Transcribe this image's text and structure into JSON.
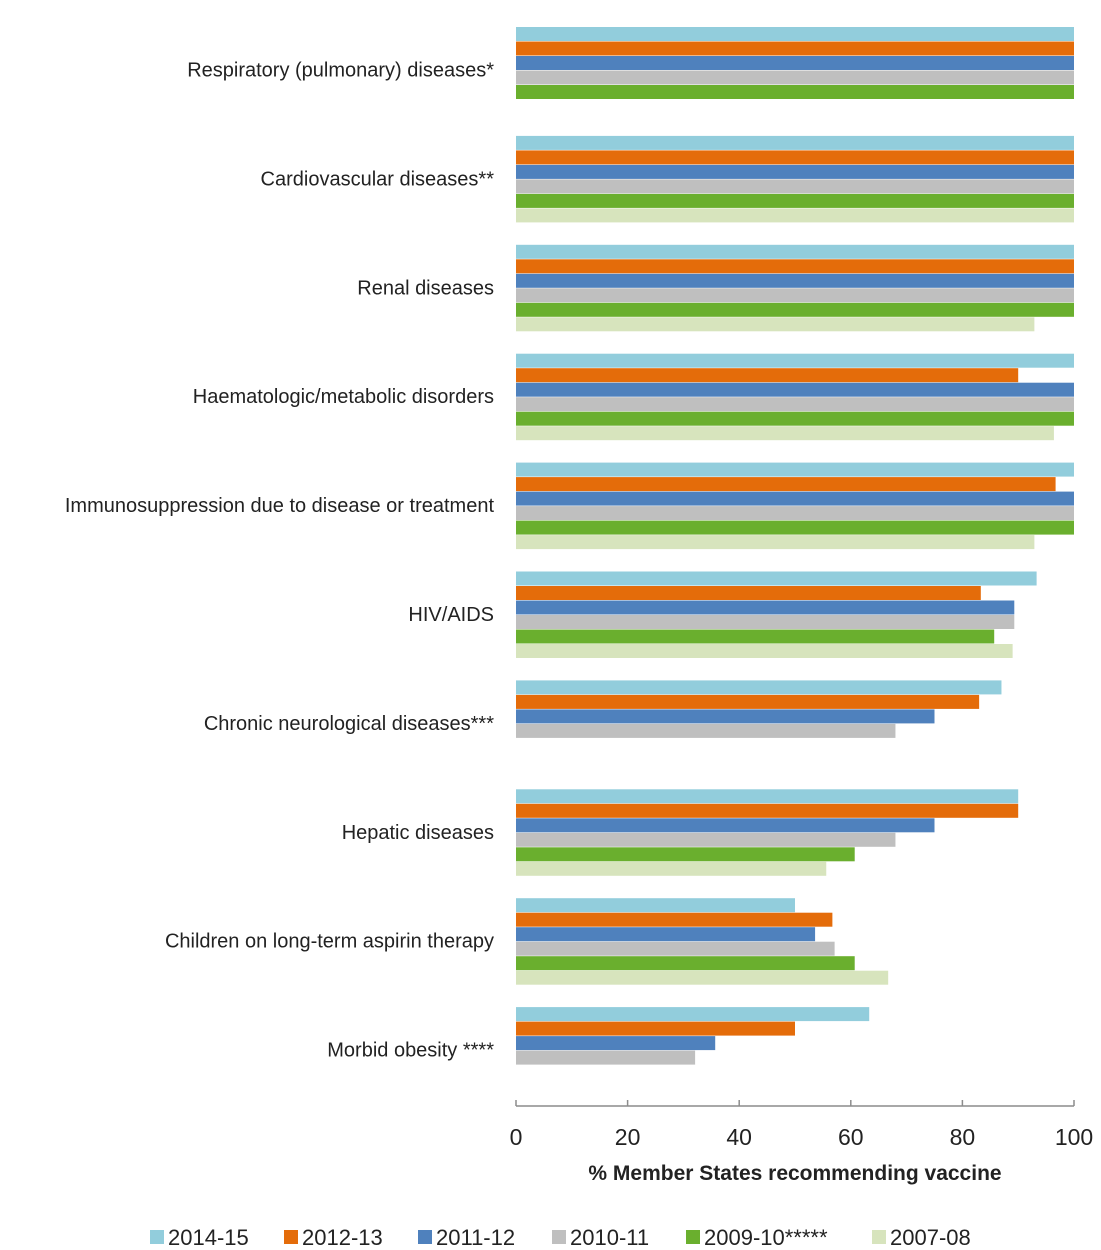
{
  "chart_data": {
    "type": "bar",
    "orientation": "horizontal",
    "title": "",
    "xlabel": "% Member States recommending vaccine",
    "ylabel": "",
    "xlim": [
      0,
      100
    ],
    "xticks": [
      0,
      20,
      40,
      60,
      80,
      100
    ],
    "grid": false,
    "legend_position": "bottom",
    "categories": [
      "Respiratory (pulmonary) diseases*",
      "Cardiovascular diseases**",
      "Renal diseases",
      "Haematologic/metabolic disorders",
      "Immunosuppression due to disease or treatment",
      "HIV/AIDS",
      "Chronic neurological diseases***",
      "Hepatic diseases",
      "Children on long-term aspirin therapy",
      "Morbid obesity ****"
    ],
    "series": [
      {
        "name": "2014-15",
        "color": "#92cddc",
        "values": [
          100,
          100,
          100,
          100,
          100,
          93.3,
          87,
          90,
          50,
          63.3
        ]
      },
      {
        "name": "2012-13",
        "color": "#e46c0a",
        "values": [
          100,
          100,
          100,
          90,
          96.7,
          83.3,
          83,
          90,
          56.7,
          50
        ]
      },
      {
        "name": "2011-12",
        "color": "#4f81bd",
        "values": [
          100,
          100,
          100,
          100,
          100,
          89.3,
          75,
          75,
          53.6,
          35.7
        ]
      },
      {
        "name": "2010-11",
        "color": "#bfbfbf",
        "values": [
          100,
          100,
          100,
          100,
          100,
          89.3,
          68,
          68,
          57.1,
          32.1
        ]
      },
      {
        "name": "2009-10*****",
        "color": "#6aaf2e",
        "values": [
          100,
          100,
          100,
          100,
          100,
          85.7,
          null,
          60.7,
          60.7,
          null
        ]
      },
      {
        "name": "2007-08",
        "color": "#d7e4bd",
        "values": [
          null,
          100,
          92.9,
          96.4,
          92.9,
          89,
          null,
          55.6,
          66.7,
          null
        ]
      }
    ]
  }
}
